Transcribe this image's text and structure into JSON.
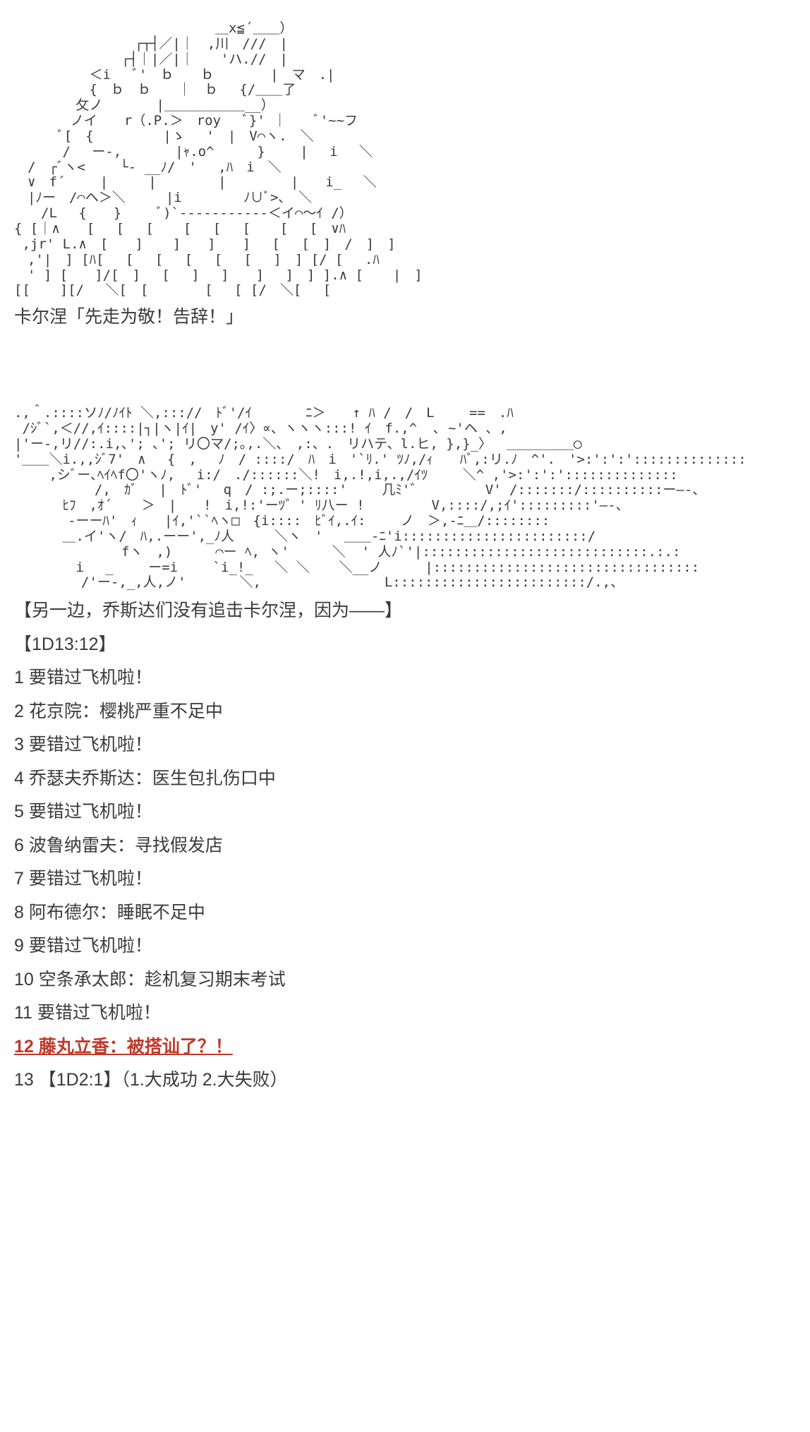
{
  "ascii_art_1": "　　　　　　　　　　　　　　　＿x≦´＿＿）\n　　　　　　　　　┌┬┤／|｜　,川　///　|\n　　　　　　　　┌┤｜|／|｜　　'ハ.//　|\n　　　　　 ＜i　 ﾞ'　ｂ　　ｂ　 　 　|　マ　.|\n　　　　　 {　ｂ　ｂ　　｜　ｂ　 {/＿＿了\n　　　　 攵ノ　　　　|＿＿＿＿＿＿__）\n　　 　 ノイ　　r（.P.＞　roy 　ﾞ}' ｜　　ﾞ'~~フ\n　　　 ﾞ[　{　　 　 　|ゝ　 '　|　V⌒ヽ.　＼\n　　 　/　 ー-,　　　　|ｬ.o^　 　 } 　　|　 i　 ＼\n　/　┌ﾞヽ< 　　└- __ﾉ/　'　 ,ﾊ　i　＼\n　∨　f´　 　|　　　|　　　　 | 　　 　 |　　i_　 ＼\n　|ﾉー　/⌒ヘ＞＼　　　|i　　　　 ﾉ∪ﾞ>､　＼\n　　/L 　{　　}　　 ﾞ)`-----------＜イ⌒〜ｲ /）\n{ [｜∧　　[ 　[　 [ 　 [ 　[ 　[ 　 [　 [　∨ﾊ\n ,jr' L.∧　[　　] 　 ]　　]　　]　 [ 　[　]　/　]　]\n　,'|　] [ﾊ[ 　[ 　[　 [　 [　 [　 ]　] [/ [ 　.ﾊ\n　' ] [　　]/[　]　 [　 ]　 ]　　]　 ]　] ].∧ [ 　 |　]\n[[ 　 ][/ 　＼[　[　 　 　[ 　[ [/　＼[ 　[",
  "caption_1": "卡尔涅「先走为敬！告辞！」",
  "ascii_art_2": ".,＾.::::ソﾉ/ﾉｲﾄ ＼,::://　ﾄﾞ'/ｲ　　　　ﾆ＞　　↑ ﾊ /　/　L 　　==　.ﾊ\n /ｼﾞ`,＜//,ｲ::::|┐|ヽ|ｲ|　y' /ｲ〉∝、ヽヽヽ:::! ｲ　f.,^  ､ ~'ヘ 、,\n|'ー-,リ//:.i,､'; ､'; リ〇マ/;｡,.＼、　,:、.　リハテ、l.ヒ, },}_〉　 ＿＿＿＿＿◯\n'＿＿＼i.,,ｼﾞ7'　∧　 {　, 　ﾉ　/ ::::/　ﾊ　i　'`ﾘ.' ﾂﾉ,/ｨ　　ﾊﾞ,:リ.ﾉ　^'.　'>:':':'::::::::::::::\n　 　,シﾞー､ﾍｲﾍf〇'ヽﾉ,　 i:/　./::::::＼!　i,.!,i,.,/ｲﾂ　　 ＼^ ,'>:':':'::::::::::::::\n　　　　　　/,　ｶﾞ　 |　ﾄﾞ' 　q　/ :;.ー;::::'　 　几ﾐ'゛　　　 　V' /:::::::/::::::::::ー―-、\n　　　 ﾋﾌ　,ｵ´ 　 ＞　|　　!　i,!:'ーﾂ゛' ﾘ八ー !　　　　　V,::::/,;ｲ':::::::::'―-、\n　　　　-ーーﾊ'　ｨ　　|ｲ,'``ﾍヽ□　{i::::　ﾋﾞｲ,.ｲ:　　 ノ　＞,-ﾆ＿/::::::::\n　　　 ＿.イ'ヽ/　ﾊ,.ーー',_ﾉ人　　　＼ヽ　'　 ＿＿-ﾆ'i:::::::::::::::::::::::/\n　　　　　　　　fヽ　,) 　 　⌒ー ﾍ, ヽ'　 　 ＼  ' 人ﾉ`'|::::::::::::::::::::::::::::.:.:\n　　　 　i 　_ 　　ー=i 　　`i_!_ 　＼ ＼ 　 ＼__ノ　 　 |:::::::::::::::::::::::::::::::::\n　　　　　/'ー-,_,人,ノ'　　　　＼,　　　 　　　　　 L::::::::::::::::::::::::/.,、",
  "story_lines": [
    "【另一边，乔斯达们没有追击卡尔涅，因为——】",
    "【1D13:12】"
  ],
  "options": [
    {
      "n": "1",
      "text": "要错过飞机啦！",
      "hl": false
    },
    {
      "n": "2",
      "text": "花京院：樱桃严重不足中",
      "hl": false
    },
    {
      "n": "3",
      "text": "要错过飞机啦！",
      "hl": false
    },
    {
      "n": "4",
      "text": "乔瑟夫乔斯达：医生包扎伤口中",
      "hl": false
    },
    {
      "n": "5",
      "text": "要错过飞机啦！",
      "hl": false
    },
    {
      "n": "6",
      "text": "波鲁纳雷夫：寻找假发店",
      "hl": false
    },
    {
      "n": "7",
      "text": "要错过飞机啦！",
      "hl": false
    },
    {
      "n": "8",
      "text": "阿布德尔：睡眠不足中",
      "hl": false
    },
    {
      "n": "9",
      "text": "要错过飞机啦！",
      "hl": false
    },
    {
      "n": "10",
      "text": "空条承太郎：趁机复习期末考试",
      "hl": false
    },
    {
      "n": "11",
      "text": "要错过飞机啦！",
      "hl": false
    },
    {
      "n": "12",
      "text": "藤丸立香：被搭讪了？！",
      "hl": true
    },
    {
      "n": "13",
      "text": "【1D2:1】（1.大成功 2.大失败）",
      "hl": false
    }
  ],
  "colors": {
    "text": "#3a3a3a",
    "highlight": "#c0392b",
    "background": "#ffffff"
  }
}
